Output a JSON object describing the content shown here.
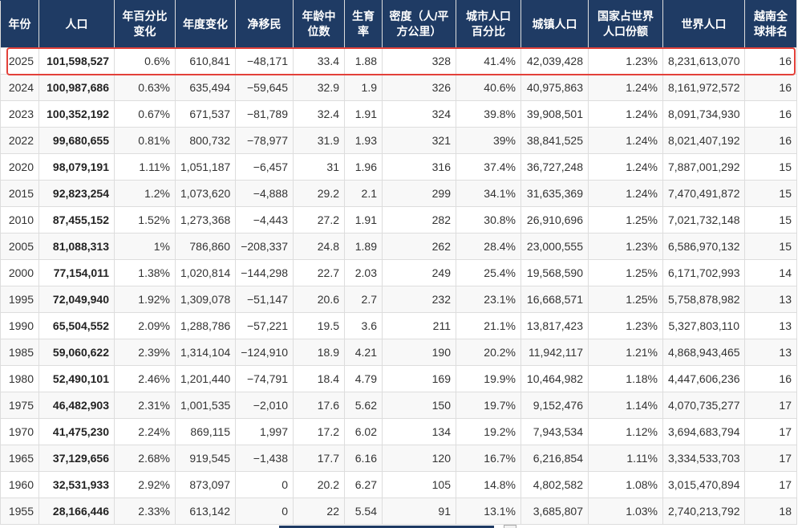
{
  "colors": {
    "header_bg": "#1f3b64",
    "header_text": "#ffffff",
    "cell_border": "#dddddd",
    "stripe_bg": "#f8f8f8",
    "highlight_border": "#e3413a"
  },
  "table": {
    "headers": [
      "年份",
      "人口",
      "年百分比变化",
      "年度变化",
      "净移民",
      "年龄中位数",
      "生育率",
      "密度（人/平方公里）",
      "城市人口百分比",
      "城镇人口",
      "国家占世界人口份额",
      "世界人口",
      "越南全球排名"
    ],
    "highlighted_row_index": 0,
    "rows": [
      [
        "2025",
        "101,598,527",
        "0.6%",
        "610,841",
        "−48,171",
        "33.4",
        "1.88",
        "328",
        "41.4%",
        "42,039,428",
        "1.23%",
        "8,231,613,070",
        "16"
      ],
      [
        "2024",
        "100,987,686",
        "0.63%",
        "635,494",
        "−59,645",
        "32.9",
        "1.9",
        "326",
        "40.6%",
        "40,975,863",
        "1.24%",
        "8,161,972,572",
        "16"
      ],
      [
        "2023",
        "100,352,192",
        "0.67%",
        "671,537",
        "−81,789",
        "32.4",
        "1.91",
        "324",
        "39.8%",
        "39,908,501",
        "1.24%",
        "8,091,734,930",
        "16"
      ],
      [
        "2022",
        "99,680,655",
        "0.81%",
        "800,732",
        "−78,977",
        "31.9",
        "1.93",
        "321",
        "39%",
        "38,841,525",
        "1.24%",
        "8,021,407,192",
        "16"
      ],
      [
        "2020",
        "98,079,191",
        "1.11%",
        "1,051,187",
        "−6,457",
        "31",
        "1.96",
        "316",
        "37.4%",
        "36,727,248",
        "1.24%",
        "7,887,001,292",
        "15"
      ],
      [
        "2015",
        "92,823,254",
        "1.2%",
        "1,073,620",
        "−4,888",
        "29.2",
        "2.1",
        "299",
        "34.1%",
        "31,635,369",
        "1.24%",
        "7,470,491,872",
        "15"
      ],
      [
        "2010",
        "87,455,152",
        "1.52%",
        "1,273,368",
        "−4,443",
        "27.2",
        "1.91",
        "282",
        "30.8%",
        "26,910,696",
        "1.25%",
        "7,021,732,148",
        "15"
      ],
      [
        "2005",
        "81,088,313",
        "1%",
        "786,860",
        "−208,337",
        "24.8",
        "1.89",
        "262",
        "28.4%",
        "23,000,555",
        "1.23%",
        "6,586,970,132",
        "15"
      ],
      [
        "2000",
        "77,154,011",
        "1.38%",
        "1,020,814",
        "−144,298",
        "22.7",
        "2.03",
        "249",
        "25.4%",
        "19,568,590",
        "1.25%",
        "6,171,702,993",
        "14"
      ],
      [
        "1995",
        "72,049,940",
        "1.92%",
        "1,309,078",
        "−51,147",
        "20.6",
        "2.7",
        "232",
        "23.1%",
        "16,668,571",
        "1.25%",
        "5,758,878,982",
        "13"
      ],
      [
        "1990",
        "65,504,552",
        "2.09%",
        "1,288,786",
        "−57,221",
        "19.5",
        "3.6",
        "211",
        "21.1%",
        "13,817,423",
        "1.23%",
        "5,327,803,110",
        "13"
      ],
      [
        "1985",
        "59,060,622",
        "2.39%",
        "1,314,104",
        "−124,910",
        "18.9",
        "4.21",
        "190",
        "20.2%",
        "11,942,117",
        "1.21%",
        "4,868,943,465",
        "13"
      ],
      [
        "1980",
        "52,490,101",
        "2.46%",
        "1,201,440",
        "−74,791",
        "18.4",
        "4.79",
        "169",
        "19.9%",
        "10,464,982",
        "1.18%",
        "4,447,606,236",
        "16"
      ],
      [
        "1975",
        "46,482,903",
        "2.31%",
        "1,001,535",
        "−2,010",
        "17.6",
        "5.62",
        "150",
        "19.7%",
        "9,152,476",
        "1.14%",
        "4,070,735,277",
        "17"
      ],
      [
        "1970",
        "41,475,230",
        "2.24%",
        "869,115",
        "1,997",
        "17.2",
        "6.02",
        "134",
        "19.2%",
        "7,943,534",
        "1.12%",
        "3,694,683,794",
        "17"
      ],
      [
        "1965",
        "37,129,656",
        "2.68%",
        "919,545",
        "−1,438",
        "17.7",
        "6.16",
        "120",
        "16.7%",
        "6,216,854",
        "1.11%",
        "3,334,533,703",
        "17"
      ],
      [
        "1960",
        "32,531,933",
        "2.92%",
        "873,097",
        "0",
        "20.2",
        "6.27",
        "105",
        "14.8%",
        "4,802,582",
        "1.08%",
        "3,015,470,894",
        "17"
      ],
      [
        "1955",
        "28,166,446",
        "2.33%",
        "613,142",
        "0",
        "22",
        "5.54",
        "91",
        "13.1%",
        "3,685,807",
        "1.03%",
        "2,740,213,792",
        "18"
      ]
    ]
  }
}
